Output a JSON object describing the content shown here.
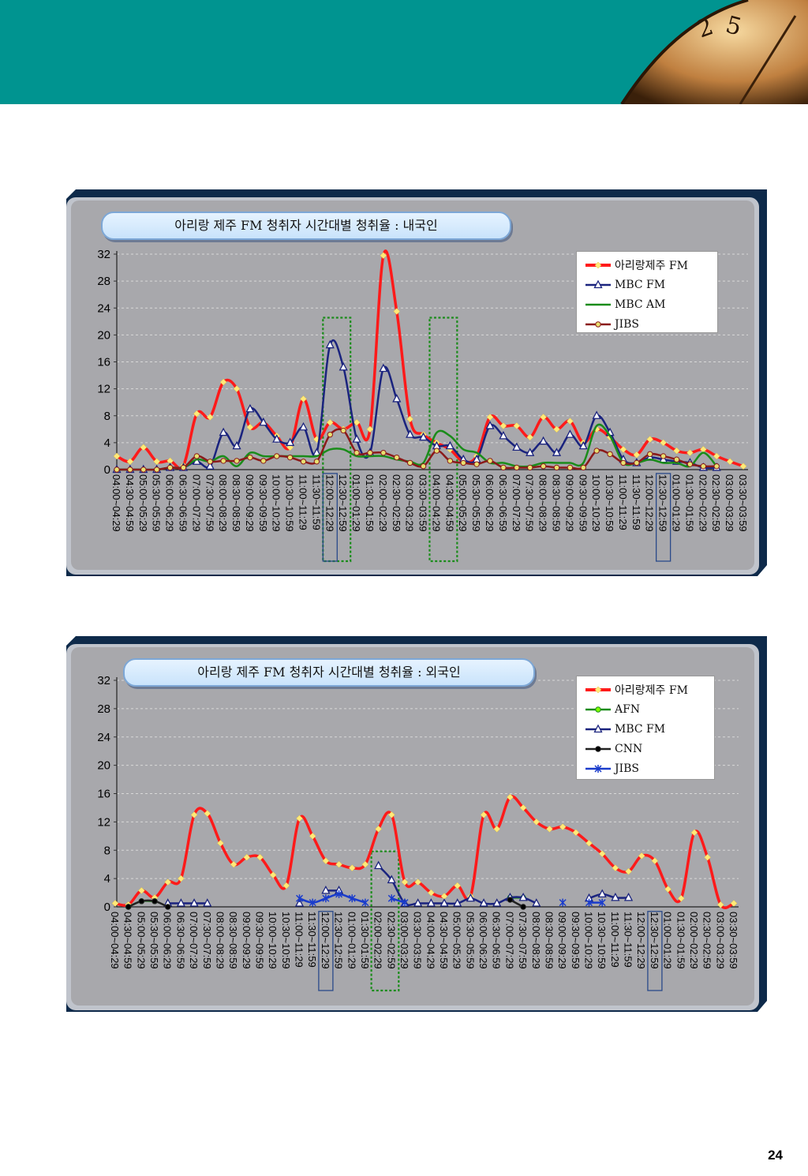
{
  "page": {
    "number": "24"
  },
  "chart_data": [
    {
      "type": "line",
      "title": "아리랑 제주 FM 청취자 시간대별 청취율 : 내국인",
      "ylim": [
        0,
        32
      ],
      "yticks": [
        "0",
        "4",
        "8",
        "12",
        "16",
        "20",
        "24",
        "28",
        "32"
      ],
      "grid": true,
      "legend_position": "top-right",
      "categories": [
        "04:00~04:29",
        "04:30~04:59",
        "05:00~05:29",
        "05:30~05:59",
        "06:00~06:29",
        "06:30~06:59",
        "07:00~07:29",
        "07:30~07:59",
        "08:00~08:29",
        "08:30~08:59",
        "09:00~09:29",
        "09:30~09:59",
        "10:00~10:29",
        "10:30~10:59",
        "11:00~11:29",
        "11:30~11:59",
        "12:00~12:29",
        "12:30~12:59",
        "01:00~01:29",
        "01:30~01:59",
        "02:00~02:29",
        "02:30~02:59",
        "03:00~03:29",
        "03:30~03:59",
        "04:00~04:29",
        "04:30~04:59",
        "05:00~05:29",
        "05:30~05:59",
        "06:00~06:29",
        "06:30~06:59",
        "07:00~07:29",
        "07:30~07:59",
        "08:00~08:29",
        "08:30~08:59",
        "09:00~09:29",
        "09:30~09:59",
        "10:00~10:29",
        "10:30~10:59",
        "11:00~11:29",
        "11:30~11:59",
        "12:00~12:29",
        "12:30~12:59",
        "01:00~01:29",
        "01:30~01:59",
        "02:00~02:29",
        "02:30~02:59",
        "03:00~03:29",
        "03:30~03:59"
      ],
      "series": [
        {
          "name": "아리랑제주 FM",
          "color": "#ff1a1a",
          "marker": "diamond",
          "marker_color": "#ffe97a",
          "values": [
            2,
            1.2,
            3.3,
            1.2,
            1.3,
            0.6,
            8.3,
            7.8,
            13,
            12,
            6.3,
            7,
            5,
            3.3,
            10.5,
            4.5,
            7,
            6,
            7,
            6,
            31.8,
            23.5,
            7.5,
            5.2,
            4,
            3,
            1.2,
            2,
            7.8,
            6.5,
            6.5,
            4.8,
            7.8,
            6,
            7.2,
            4,
            6,
            4.8,
            3,
            2.2,
            4.5,
            4,
            2.8,
            2.5,
            3,
            2,
            1.2,
            0.5
          ]
        },
        {
          "name": "MBC FM",
          "color": "#1a237e",
          "marker": "triangle",
          "marker_color": "#ffffff",
          "values": [
            0,
            0,
            0,
            0,
            0.3,
            0.3,
            1.2,
            0.5,
            5.5,
            3.5,
            9,
            7,
            4.5,
            4,
            6.3,
            2.5,
            18.5,
            15.2,
            4.5,
            2.5,
            15,
            10.5,
            5.2,
            4.8,
            3.5,
            3.5,
            1.5,
            1.5,
            6.5,
            5,
            3.3,
            2.5,
            4.2,
            2.5,
            5.2,
            3.5,
            8,
            5.5,
            1.5,
            1,
            1.8,
            1.5,
            1.2,
            1,
            0.3,
            0.3,
            null,
            null
          ]
        },
        {
          "name": "MBC AM",
          "color": "#1a8c1a",
          "marker": "none",
          "values": [
            0,
            0,
            0,
            0,
            0.3,
            0.3,
            1.5,
            1.2,
            2,
            0.5,
            2.5,
            2,
            2,
            2,
            2,
            2,
            3,
            3,
            2,
            2,
            2,
            1.5,
            1.2,
            1,
            5.5,
            5,
            3,
            2.5,
            1,
            1,
            0.5,
            0.5,
            1,
            1,
            1,
            1,
            6.5,
            5,
            1,
            1,
            1.5,
            1,
            1,
            0.5,
            2.5,
            0.5,
            null,
            null
          ]
        },
        {
          "name": "JIBS",
          "color": "#8b1a1a",
          "marker": "circle",
          "marker_color": "#e8e070",
          "values": [
            0,
            0,
            0,
            0,
            0.3,
            0.3,
            2,
            1.2,
            1.3,
            1.3,
            1.8,
            1.3,
            2,
            1.8,
            1.2,
            1.2,
            5.2,
            5.8,
            2.5,
            2.5,
            2.5,
            1.8,
            1,
            0.5,
            2.8,
            1.3,
            1,
            0.8,
            1.3,
            0.3,
            0.3,
            0.3,
            0.5,
            0.3,
            0.3,
            0.3,
            2.8,
            2.3,
            1,
            1,
            2.3,
            2,
            1.5,
            0.8,
            0.5,
            0.5,
            null,
            null
          ]
        }
      ]
    },
    {
      "type": "line",
      "title": "아리랑 제주 FM 청취자 시간대별 청취율 : 외국인",
      "ylim": [
        0,
        32
      ],
      "yticks": [
        "0",
        "4",
        "8",
        "12",
        "16",
        "20",
        "24",
        "28",
        "32"
      ],
      "grid": true,
      "legend_position": "top-right",
      "categories": [
        "04:00~04:29",
        "04:30~04:59",
        "05:00~05:29",
        "05:30~05:59",
        "06:00~06:29",
        "06:30~06:59",
        "07:00~07:29",
        "07:30~07:59",
        "08:00~08:29",
        "08:30~08:59",
        "09:00~09:29",
        "09:30~09:59",
        "10:00~10:29",
        "10:30~10:59",
        "11:00~11:29",
        "11:30~11:59",
        "12:00~12:29",
        "12:30~12:59",
        "01:00~01:29",
        "01:30~01:59",
        "02:00~02:29",
        "02:30~02:59",
        "03:00~03:29",
        "03:30~03:59",
        "04:00~04:29",
        "04:30~04:59",
        "05:00~05:29",
        "05:30~05:59",
        "06:00~06:29",
        "06:30~06:59",
        "07:00~07:29",
        "07:30~07:59",
        "08:00~08:29",
        "08:30~08:59",
        "09:00~09:29",
        "09:30~09:59",
        "10:00~10:29",
        "10:30~10:59",
        "11:00~11:29",
        "11:30~11:59",
        "12:00~12:29",
        "12:30~12:59",
        "01:00~01:29",
        "01:30~01:59",
        "02:00~02:29",
        "02:30~02:59",
        "03:00~03:29",
        "03:30~03:59"
      ],
      "series": [
        {
          "name": "아리랑제주 FM",
          "color": "#ff1a1a",
          "marker": "diamond",
          "marker_color": "#ffe97a",
          "values": [
            0.5,
            0.3,
            2.3,
            1.3,
            3.5,
            4,
            13,
            13.2,
            9,
            6,
            7,
            7,
            4.5,
            3,
            12.5,
            10,
            6.5,
            6,
            5.5,
            6,
            11,
            13,
            3.5,
            3.5,
            2,
            1.5,
            3,
            1.5,
            13,
            11,
            15.5,
            14,
            12,
            11,
            11.3,
            10.5,
            9,
            7.5,
            5.5,
            5,
            7.2,
            6.5,
            2.5,
            1.2,
            10.5,
            7,
            0.3,
            0.5
          ]
        },
        {
          "name": "AFN",
          "color": "#1a8c1a",
          "marker": "circle",
          "marker_color": "#7fff00",
          "values": [
            null,
            0,
            0.8,
            0.8,
            null,
            null,
            null,
            null,
            null,
            null,
            null,
            null,
            null,
            null,
            null,
            null,
            null,
            null,
            null,
            null,
            null,
            null,
            null,
            null,
            null,
            null,
            null,
            null,
            null,
            null,
            1.3,
            1.3,
            null,
            null,
            null,
            null,
            null,
            null,
            null,
            null,
            null,
            null,
            null,
            null,
            null,
            null,
            null,
            null
          ]
        },
        {
          "name": "MBC FM",
          "color": "#1a237e",
          "marker": "triangle",
          "marker_color": "#ffffff",
          "values": [
            null,
            null,
            null,
            null,
            0.5,
            0.5,
            0.5,
            0.5,
            null,
            null,
            null,
            null,
            null,
            null,
            0.5,
            null,
            2.3,
            2.3,
            null,
            null,
            5.8,
            3.8,
            0.5,
            0.5,
            0.5,
            0.5,
            0.5,
            1.2,
            0.5,
            0.5,
            1.3,
            1.3,
            0.5,
            null,
            null,
            null,
            1.2,
            1.8,
            1.3,
            1.3,
            null,
            null,
            null,
            null,
            null,
            null,
            null,
            null
          ]
        },
        {
          "name": "CNN",
          "color": "#222222",
          "marker": "circle",
          "marker_color": "#000000",
          "values": [
            null,
            0,
            0.8,
            0.8,
            0,
            null,
            null,
            null,
            null,
            null,
            null,
            null,
            null,
            null,
            null,
            null,
            null,
            null,
            null,
            null,
            null,
            null,
            null,
            null,
            null,
            null,
            null,
            null,
            null,
            null,
            1,
            0,
            null,
            null,
            null,
            null,
            null,
            null,
            null,
            null,
            null,
            null,
            null,
            null,
            null,
            null,
            null,
            null
          ]
        },
        {
          "name": "JIBS",
          "color": "#1a3ccc",
          "marker": "star",
          "marker_color": "#1a3ccc",
          "values": [
            null,
            null,
            null,
            null,
            null,
            null,
            null,
            null,
            null,
            null,
            null,
            null,
            null,
            null,
            1.2,
            0.6,
            1.2,
            1.8,
            1.2,
            0.6,
            null,
            1.2,
            0.6,
            null,
            null,
            null,
            null,
            null,
            null,
            null,
            null,
            null,
            null,
            null,
            0.6,
            null,
            0.6,
            0.6,
            null,
            null,
            null,
            null,
            null,
            null,
            null,
            null,
            null,
            null
          ]
        }
      ]
    }
  ]
}
